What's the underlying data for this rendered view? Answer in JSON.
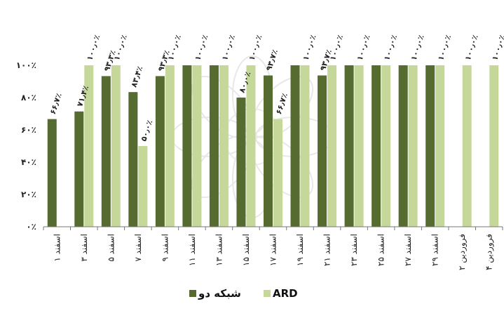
{
  "chart_data": {
    "type": "bar",
    "title": "",
    "xlabel": "",
    "ylabel": "",
    "ylim": [
      0,
      100
    ],
    "y_ticks": [
      "۰٪",
      "۲۰٪",
      "۴۰٪",
      "۶۰٪",
      "۸۰٪",
      "۱۰۰٪"
    ],
    "grid": false,
    "legend_position": "bottom",
    "categories": [
      "۱ اسفند",
      "۳ اسفند",
      "۵ اسفند",
      "۷ اسفند",
      "۹ اسفند",
      "۱۱ اسفند",
      "۱۳ اسفند",
      "۱۵ اسفند",
      "۱۷ اسفند",
      "۱۹ اسفند",
      "۲۱ اسفند",
      "۲۳ اسفند",
      "۲۵ اسفند",
      "۲۷ اسفند",
      "۲۹ اسفند",
      "۲ فروردین",
      "۴ فروردین"
    ],
    "series": [
      {
        "name": "شبکه دو",
        "color": "#556b2f",
        "values": [
          66.7,
          71.4,
          93.3,
          83.4,
          93.3,
          100,
          100,
          80.0,
          93.7,
          100,
          93.7,
          100,
          100,
          100,
          100,
          null,
          null
        ],
        "labels": [
          "۶۶٫۷٪",
          "۷۱٫۴٪",
          "۹۳٫۳٪",
          "۸۳٫۴٪",
          "۹۳٫۳٪",
          "",
          "",
          "۸۰٫۰٪",
          "۹۳٫۷٪",
          "",
          "۹۳٫۷٪",
          "",
          "",
          "",
          "",
          "",
          ""
        ]
      },
      {
        "name": "ARD",
        "color": "#c5d89a",
        "values": [
          null,
          100,
          100,
          50.0,
          100,
          100,
          100,
          100,
          66.7,
          100,
          100,
          100,
          100,
          100,
          100,
          100,
          100
        ],
        "labels": [
          "",
          "۱۰۰٫۰٪",
          "۱۰۰٫۰٪",
          "۵۰٫۰٪",
          "۱۰۰٫۰٪",
          "۱۰۰٫۰٪",
          "۱۰۰٫۰٪",
          "۱۰۰٫۰٪",
          "۶۶٫۷٪",
          "۱۰۰٫۰٪",
          "۱۰۰٫۰٪",
          "۱۰۰٫۰٪",
          "۱۰۰٫۰٪",
          "۱۰۰٫۰٪",
          "۱۰۰٫۰٪",
          "۱۰۰٫۰٪",
          "۱۰۰٫۰٪"
        ]
      }
    ]
  }
}
